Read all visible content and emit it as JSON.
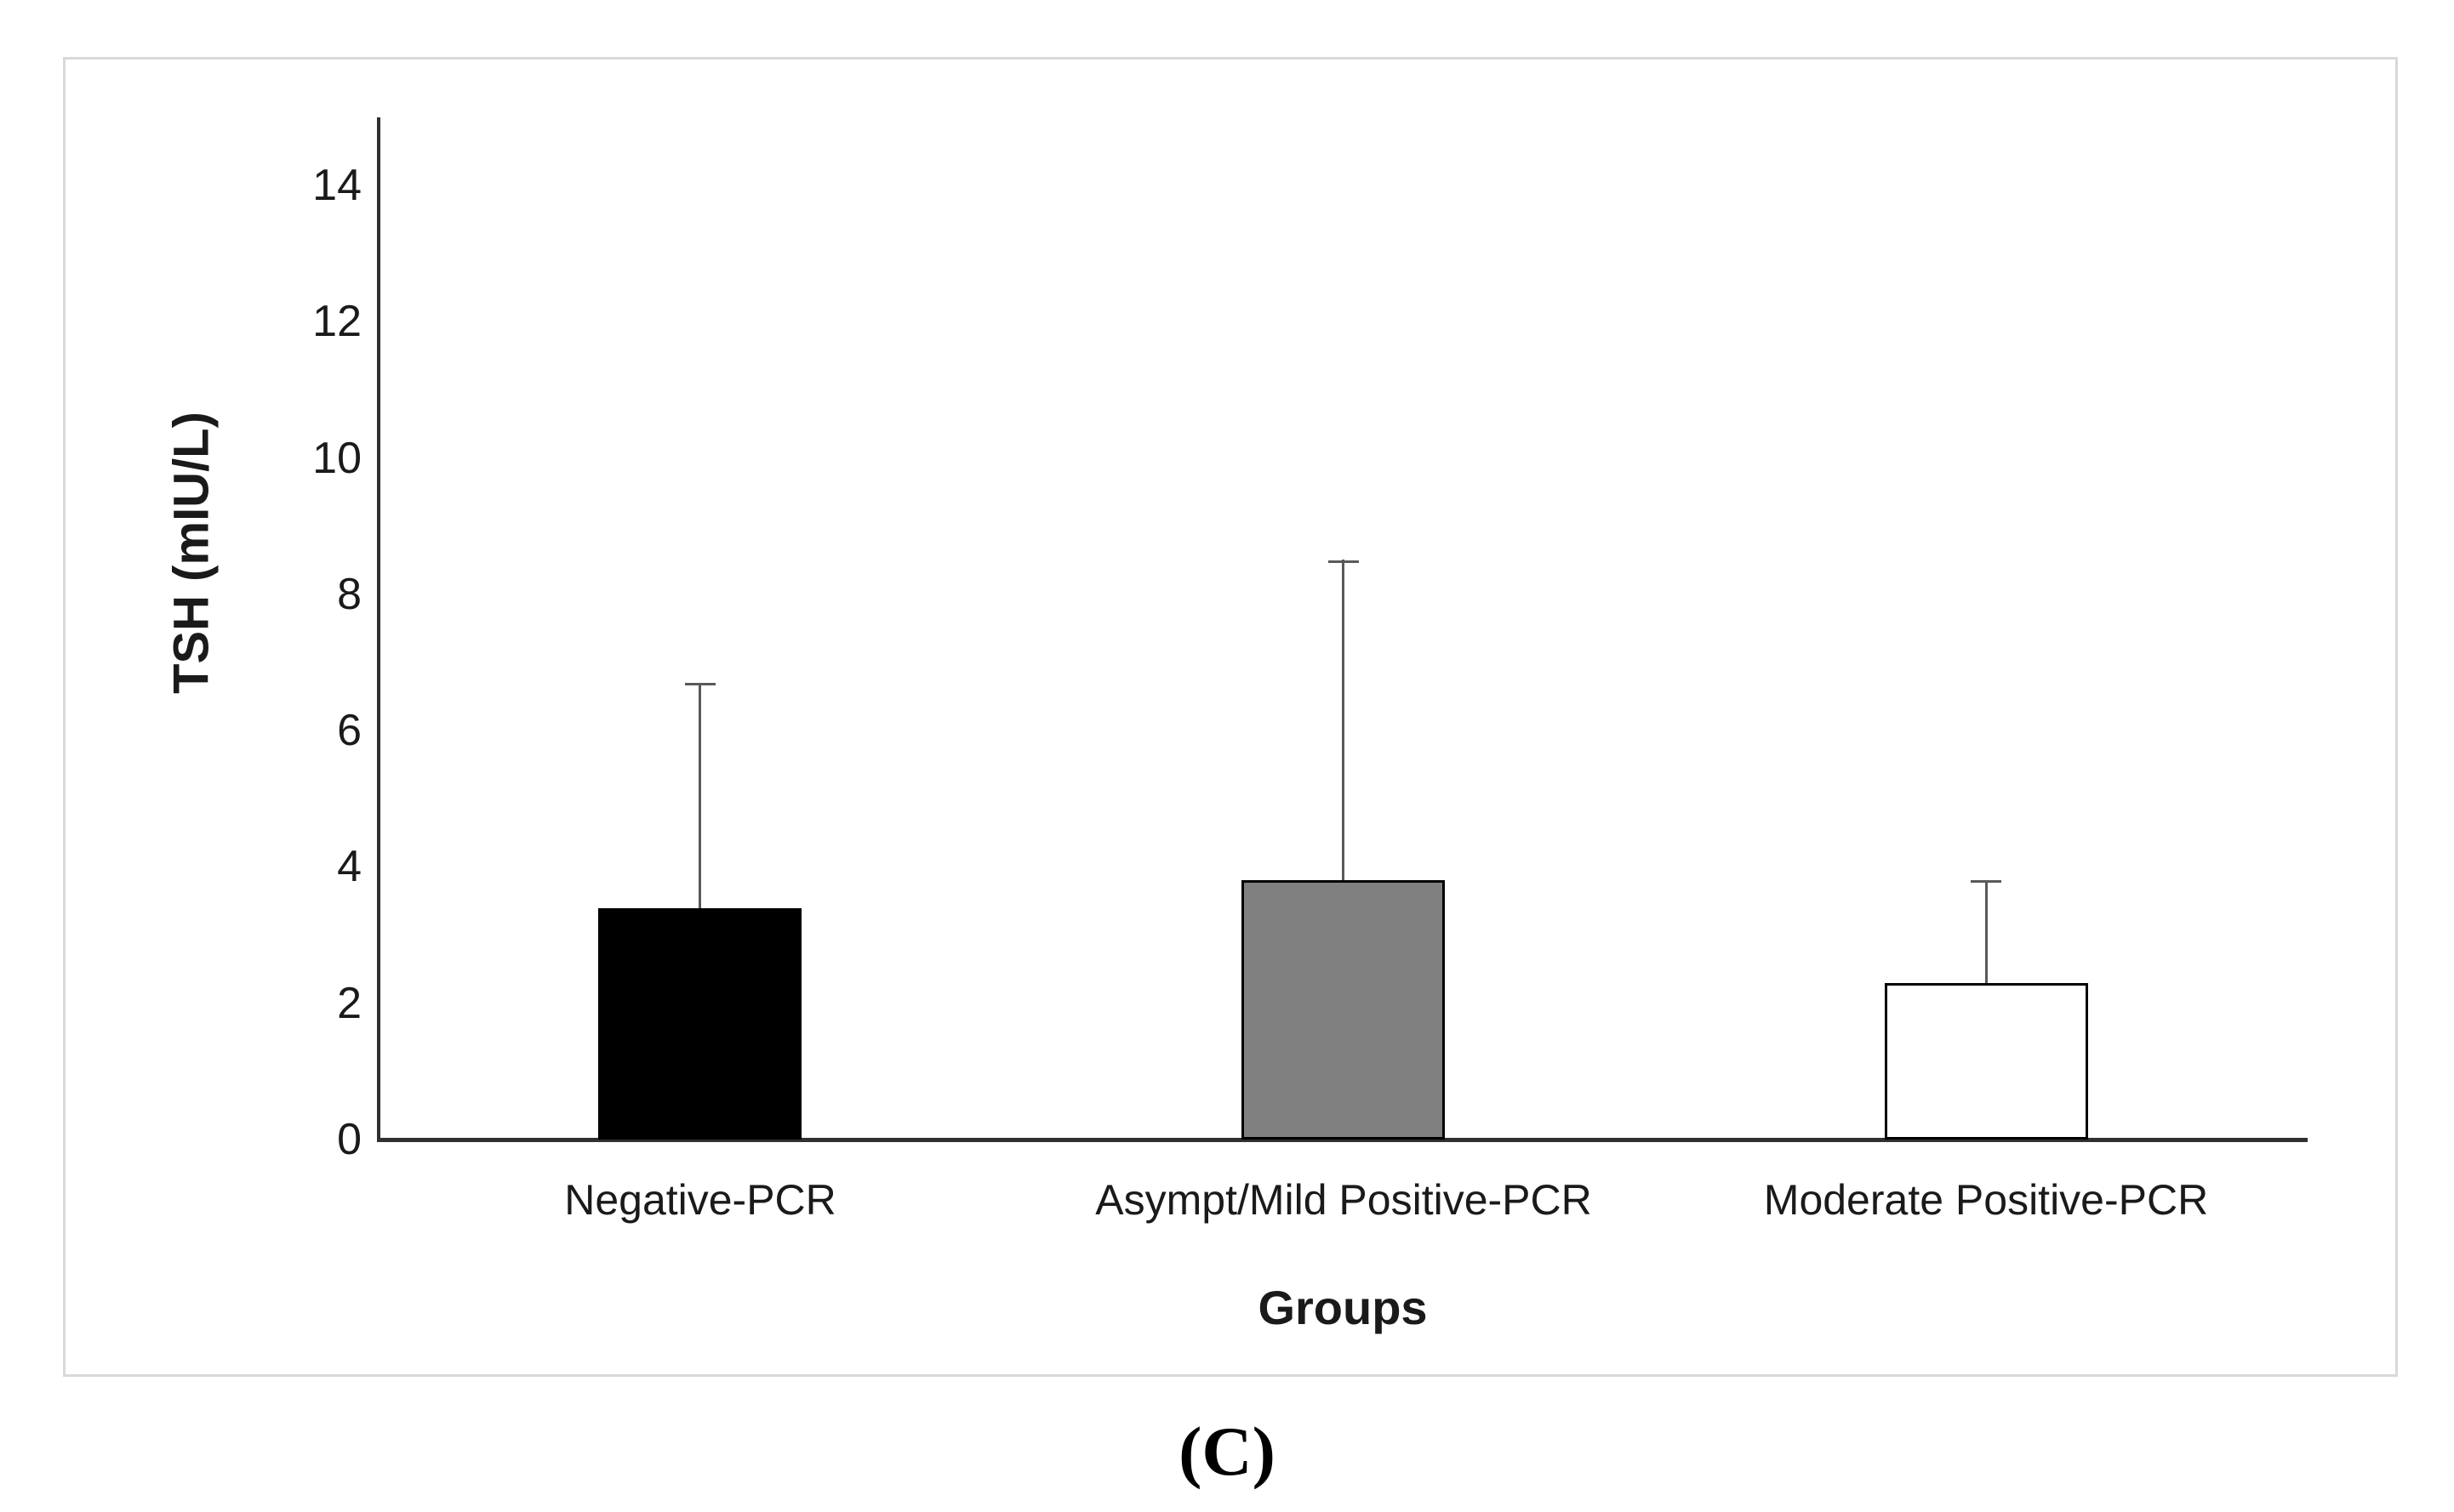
{
  "figure": {
    "caption": "(C)",
    "border_color": "#d9d9d9"
  },
  "chart_data": {
    "type": "bar",
    "title": "",
    "xlabel": "Groups",
    "ylabel": "TSH (mIU/L)",
    "categories": [
      "Negative-PCR",
      "Asympt/Mild Positive-PCR",
      "Moderate Positive-PCR"
    ],
    "values": [
      3.4,
      3.8,
      2.3
    ],
    "error_sd": [
      3.3,
      4.7,
      1.5
    ],
    "error_tops": [
      6.7,
      8.5,
      3.8
    ],
    "ylim": [
      0,
      15
    ],
    "yticks": [
      0,
      2,
      4,
      6,
      8,
      10,
      12,
      14
    ],
    "grid": false,
    "legend": "none",
    "bar_colors": [
      "#000000",
      "#808080",
      "#ffffff"
    ],
    "bar_border_color": "#000000",
    "error_bar_color": "#595959",
    "axis_color": "#303030"
  }
}
